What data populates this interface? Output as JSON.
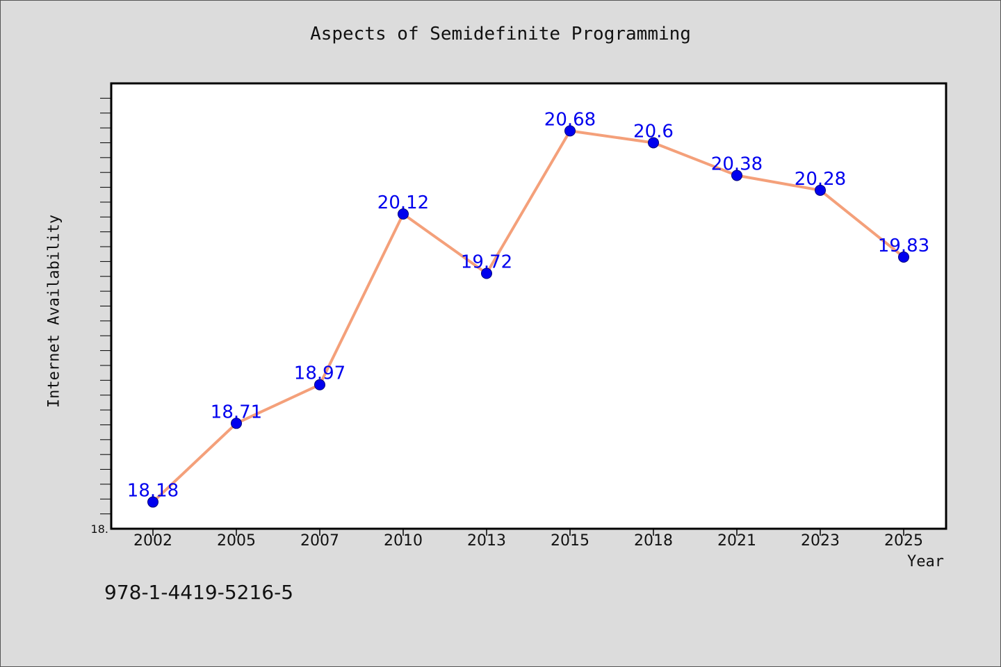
{
  "colors": {
    "background": "#dcdcdc",
    "plot_background": "#ffffff",
    "line": "#f4a07a",
    "marker": "#0000ee",
    "label": "#0000ee"
  },
  "footer": {
    "isbn": "978-1-4419-5216-5"
  },
  "chart_data": {
    "type": "line",
    "title": "Aspects of Semidefinite Programming",
    "xlabel": "Year",
    "ylabel": "Internet Availability",
    "categories": [
      "2002",
      "2005",
      "2007",
      "2010",
      "2013",
      "2015",
      "2018",
      "2021",
      "2023",
      "2025"
    ],
    "series": [
      {
        "values": [
          18.18,
          18.71,
          18.97,
          20.12,
          19.72,
          20.68,
          20.6,
          20.38,
          20.28,
          19.83
        ],
        "data_labels": [
          "18.18",
          "18.71",
          "18.97",
          "20.12",
          "19.72",
          "20.68",
          "20.6",
          "20.38",
          "20.28",
          "19.83"
        ]
      }
    ],
    "ylim": [
      18.0,
      21.0
    ],
    "y_tick_labels": [
      "18."
    ],
    "y_minor_tick_step": 0.1,
    "grid": false,
    "legend": "none"
  }
}
